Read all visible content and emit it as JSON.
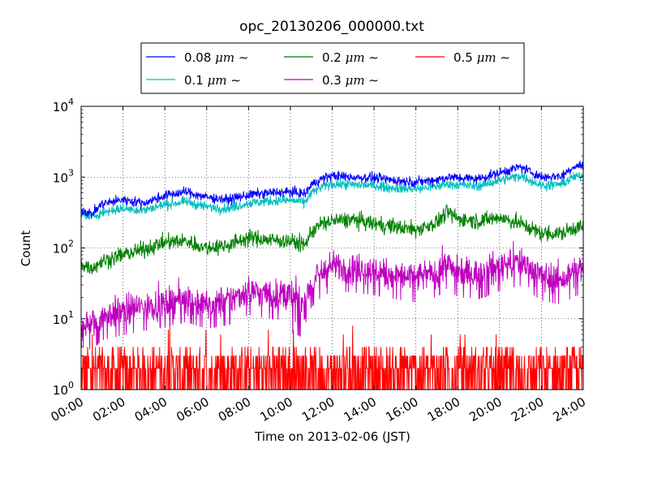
{
  "chart_data": {
    "type": "line",
    "title": "opc_20130206_000000.txt",
    "xlabel": "Time on 2013-02-06 (JST)",
    "ylabel": "Count",
    "x_tick_labels": [
      "00:00",
      "02:00",
      "04:00",
      "06:00",
      "08:00",
      "10:00",
      "12:00",
      "14:00",
      "16:00",
      "18:00",
      "20:00",
      "22:00",
      "24:00"
    ],
    "x_ticks_hours": [
      0,
      2,
      4,
      6,
      8,
      10,
      12,
      14,
      16,
      18,
      20,
      22,
      24
    ],
    "xlim_hours": [
      0,
      24
    ],
    "yscale": "log",
    "ylim": [
      1,
      10000
    ],
    "y_tick_bases": [
      "10",
      "10",
      "10",
      "10",
      "10"
    ],
    "y_tick_exponents": [
      "0",
      "1",
      "2",
      "3",
      "4"
    ],
    "y_tick_values": [
      1,
      10,
      100,
      1000,
      10000
    ],
    "grid": true,
    "legend_position": "top-center-outside",
    "legend_ncol": 3,
    "series": [
      {
        "name_prefix": "0.08 ",
        "name_unit": "μm",
        "name_suffix": " ∼",
        "color": "#0000ff",
        "hours": [
          0,
          0.5,
          1,
          2,
          3,
          4,
          5,
          6,
          7,
          8,
          9,
          10,
          10.7,
          11,
          11.5,
          12,
          13,
          14,
          15,
          16,
          17,
          17.5,
          18,
          19,
          20,
          21,
          22,
          23,
          23.5,
          24
        ],
        "values": [
          350,
          300,
          420,
          480,
          430,
          550,
          620,
          520,
          480,
          560,
          600,
          620,
          580,
          780,
          950,
          1050,
          1000,
          980,
          900,
          850,
          920,
          1000,
          980,
          950,
          1150,
          1400,
          1000,
          1050,
          1400,
          1500
        ]
      },
      {
        "name_prefix": "0.1 ",
        "name_unit": "μm",
        "name_suffix": " ∼",
        "color": "#00bfbf",
        "hours": [
          0,
          0.5,
          1,
          2,
          3,
          4,
          5,
          6,
          7,
          8,
          9,
          10,
          10.7,
          11,
          11.5,
          12,
          13,
          14,
          15,
          16,
          17,
          17.5,
          18,
          19,
          20,
          21,
          22,
          23,
          23.5,
          24
        ],
        "values": [
          300,
          270,
          320,
          360,
          340,
          410,
          450,
          380,
          360,
          430,
          460,
          470,
          440,
          600,
          720,
          800,
          780,
          760,
          700,
          680,
          740,
          800,
          780,
          750,
          900,
          1050,
          760,
          800,
          1000,
          1050
        ]
      },
      {
        "name_prefix": "0.2 ",
        "name_unit": "μm",
        "name_suffix": " ∼",
        "color": "#008000",
        "hours": [
          0,
          0.5,
          1,
          2,
          3,
          4,
          5,
          6,
          7,
          8,
          9,
          10,
          10.7,
          11,
          11.5,
          12,
          13,
          14,
          15,
          16,
          17,
          17.5,
          18,
          19,
          20,
          21,
          22,
          23,
          23.5,
          24
        ],
        "values": [
          60,
          52,
          65,
          80,
          95,
          120,
          125,
          100,
          110,
          140,
          130,
          125,
          110,
          170,
          220,
          240,
          250,
          220,
          200,
          180,
          230,
          320,
          260,
          240,
          270,
          220,
          160,
          160,
          190,
          200
        ]
      },
      {
        "name_prefix": "0.3 ",
        "name_unit": "μm",
        "name_suffix": " ∼",
        "color": "#bf00bf",
        "hours": [
          0,
          0.5,
          1,
          2,
          3,
          4,
          5,
          6,
          7,
          8,
          9,
          10,
          10.7,
          11,
          11.5,
          12,
          13,
          14,
          15,
          16,
          17,
          17.5,
          18,
          19,
          20,
          21,
          22,
          23,
          23.5,
          24
        ],
        "values": [
          9,
          8,
          11,
          13,
          15,
          17,
          20,
          16,
          18,
          25,
          22,
          21,
          18,
          32,
          45,
          55,
          52,
          48,
          42,
          38,
          45,
          60,
          45,
          42,
          55,
          65,
          40,
          35,
          45,
          50
        ]
      },
      {
        "name_prefix": "0.5 ",
        "name_unit": "μm",
        "name_suffix": " ∼",
        "color": "#ff0000",
        "hours": [
          0,
          24
        ],
        "values": [
          2,
          2
        ],
        "note_range": [
          1,
          4
        ]
      }
    ]
  }
}
